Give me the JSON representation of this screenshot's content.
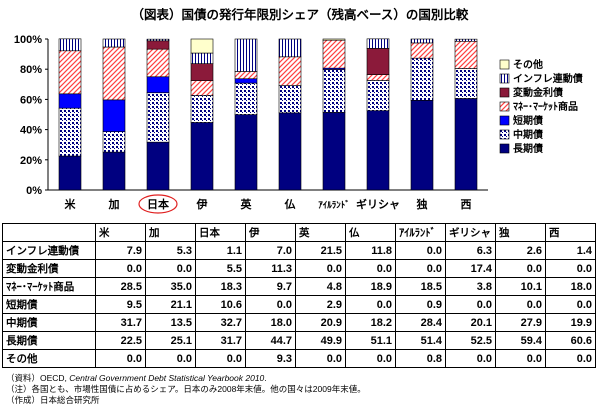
{
  "chart_data": {
    "type": "bar",
    "stacked": true,
    "percent": true,
    "title": "（図表）国債の発行年限別シェア（残高ベース）の国別比較",
    "categories": [
      "米",
      "加",
      "日本",
      "伊",
      "英",
      "仏",
      "ｱｲﾙﾗﾝﾄﾞ",
      "ギリシャ",
      "独",
      "西"
    ],
    "highlight_category": "日本",
    "ylim": [
      0,
      100
    ],
    "yticks": [
      "0%",
      "20%",
      "40%",
      "60%",
      "80%",
      "100%"
    ],
    "series": [
      {
        "name": "長期債",
        "color": "#000080",
        "pattern": "solid",
        "values": [
          22.5,
          25.1,
          31.7,
          44.7,
          49.9,
          51.1,
          51.4,
          52.5,
          59.4,
          60.6
        ]
      },
      {
        "name": "中期債",
        "color": "#000080",
        "pattern": "dots",
        "values": [
          31.7,
          13.5,
          32.7,
          18.0,
          20.9,
          18.2,
          28.4,
          20.1,
          27.9,
          19.9
        ]
      },
      {
        "name": "短期債",
        "color": "#0000ff",
        "pattern": "solid",
        "values": [
          9.5,
          21.1,
          10.6,
          0.0,
          2.9,
          0.0,
          0.9,
          0.0,
          0.0,
          0.0
        ]
      },
      {
        "name": "ﾏﾈｰ･ﾏｰｹｯﾄ商品",
        "color": "#ff5050",
        "pattern": "diag",
        "values": [
          28.5,
          35.0,
          18.3,
          9.7,
          4.8,
          18.9,
          18.5,
          3.8,
          10.1,
          18.0
        ]
      },
      {
        "name": "変動金利債",
        "color": "#8b1a3a",
        "pattern": "solid",
        "values": [
          0.0,
          0.0,
          5.5,
          11.3,
          0.0,
          0.0,
          0.0,
          17.4,
          0.0,
          0.0
        ]
      },
      {
        "name": "インフレ連動債",
        "color": "#000080",
        "pattern": "vlines",
        "values": [
          7.9,
          5.3,
          1.1,
          7.0,
          21.5,
          11.8,
          0.0,
          6.3,
          2.6,
          1.4
        ]
      },
      {
        "name": "その他",
        "color": "#ffffcc",
        "pattern": "solid",
        "values": [
          0.0,
          0.0,
          0.0,
          9.3,
          0.0,
          0.0,
          0.8,
          0.0,
          0.0,
          0.0
        ]
      }
    ],
    "legend_position": "right",
    "legend_order": [
      "その他",
      "インフレ連動債",
      "変動金利債",
      "ﾏﾈｰ･ﾏｰｹｯﾄ商品",
      "短期債",
      "中期債",
      "長期債"
    ],
    "grid": false
  },
  "table": {
    "header": [
      "米",
      "加",
      "日本",
      "伊",
      "英",
      "仏",
      "ｱｲﾙﾗﾝﾄﾞ",
      "ギリシャ",
      "独",
      "西"
    ],
    "rows": [
      {
        "label": "インフレ連動債",
        "values": [
          "7.9",
          "5.3",
          "1.1",
          "7.0",
          "21.5",
          "11.8",
          "0.0",
          "6.3",
          "2.6",
          "1.4"
        ]
      },
      {
        "label": "変動金利債",
        "values": [
          "0.0",
          "0.0",
          "5.5",
          "11.3",
          "0.0",
          "0.0",
          "0.0",
          "17.4",
          "0.0",
          "0.0"
        ]
      },
      {
        "label": "ﾏﾈｰ･ﾏｰｹｯﾄ商品",
        "values": [
          "28.5",
          "35.0",
          "18.3",
          "9.7",
          "4.8",
          "18.9",
          "18.5",
          "3.8",
          "10.1",
          "18.0"
        ]
      },
      {
        "label": "短期債",
        "values": [
          "9.5",
          "21.1",
          "10.6",
          "0.0",
          "2.9",
          "0.0",
          "0.9",
          "0.0",
          "0.0",
          "0.0"
        ]
      },
      {
        "label": "中期債",
        "values": [
          "31.7",
          "13.5",
          "32.7",
          "18.0",
          "20.9",
          "18.2",
          "28.4",
          "20.1",
          "27.9",
          "19.9"
        ]
      },
      {
        "label": "長期債",
        "values": [
          "22.5",
          "25.1",
          "31.7",
          "44.7",
          "49.9",
          "51.1",
          "51.4",
          "52.5",
          "59.4",
          "60.6"
        ]
      },
      {
        "label": "その他",
        "values": [
          "0.0",
          "0.0",
          "0.0",
          "9.3",
          "0.0",
          "0.0",
          "0.8",
          "0.0",
          "0.0",
          "0.0"
        ]
      }
    ]
  },
  "notes": {
    "source_prefix": "（資料）OECD, ",
    "source_italic": "Central Government Debt Statistical Yearbook 2010",
    "source_suffix": ".",
    "note": "（注）各国とも、市場性国債に占めるシェア。日本のみ2008年末値。他の国々は2009年末値。",
    "author": "（作成）日本総合研究所"
  }
}
